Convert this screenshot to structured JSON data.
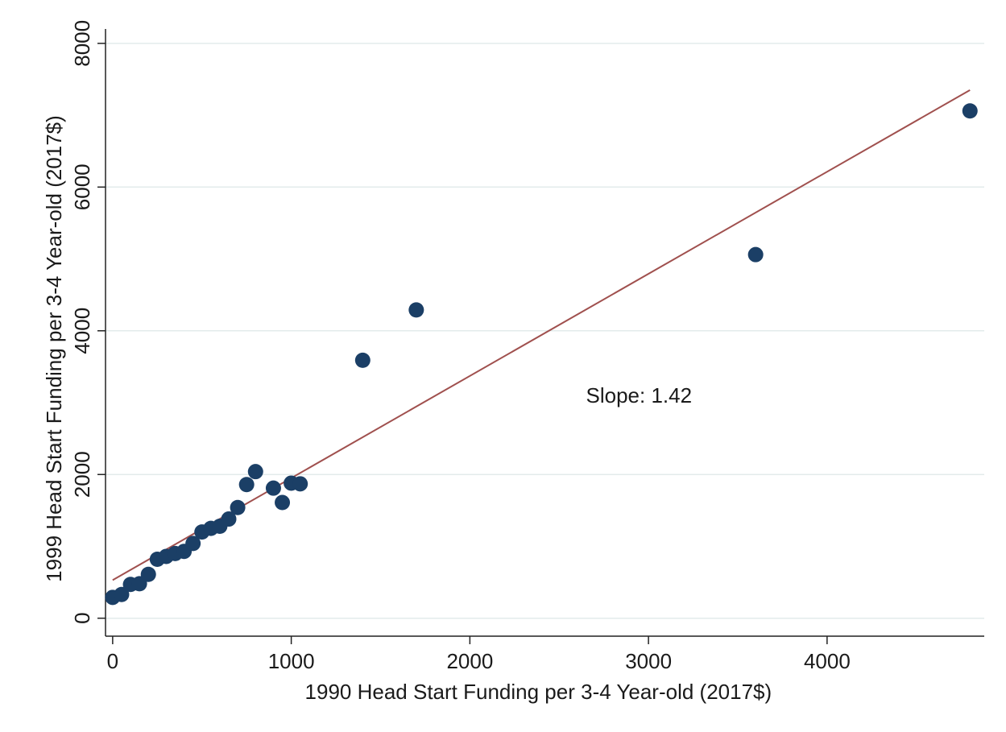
{
  "chart_data": {
    "type": "scatter",
    "title": "",
    "xlabel": "1990 Head Start Funding per 3-4 Year-old (2017$)",
    "ylabel": "1999 Head Start Funding per 3-4 Year-old (2017$)",
    "xlim": [
      -40,
      4880
    ],
    "ylim": [
      -250,
      8200
    ],
    "xticks": [
      0,
      1000,
      2000,
      3000,
      4000
    ],
    "yticks": [
      0,
      2000,
      4000,
      6000,
      8000
    ],
    "x_tick_labels": [
      "0",
      "1000",
      "2000",
      "3000",
      "4000"
    ],
    "y_tick_labels": [
      "0",
      "2000",
      "4000",
      "6000",
      "8000"
    ],
    "grid": "horizontal",
    "legend": "none",
    "marker_color": "#1b3f66",
    "line_color": "#a0504e",
    "grid_color": "#e3ebeb",
    "series": [
      {
        "points": [
          {
            "x": 0,
            "y": 290
          },
          {
            "x": 50,
            "y": 330
          },
          {
            "x": 100,
            "y": 470
          },
          {
            "x": 150,
            "y": 480
          },
          {
            "x": 200,
            "y": 610
          },
          {
            "x": 250,
            "y": 820
          },
          {
            "x": 300,
            "y": 860
          },
          {
            "x": 350,
            "y": 900
          },
          {
            "x": 400,
            "y": 930
          },
          {
            "x": 450,
            "y": 1040
          },
          {
            "x": 500,
            "y": 1200
          },
          {
            "x": 550,
            "y": 1250
          },
          {
            "x": 600,
            "y": 1280
          },
          {
            "x": 650,
            "y": 1380
          },
          {
            "x": 700,
            "y": 1540
          },
          {
            "x": 750,
            "y": 1860
          },
          {
            "x": 800,
            "y": 2040
          },
          {
            "x": 900,
            "y": 1810
          },
          {
            "x": 950,
            "y": 1610
          },
          {
            "x": 1000,
            "y": 1880
          },
          {
            "x": 1050,
            "y": 1870
          },
          {
            "x": 1400,
            "y": 3590
          },
          {
            "x": 1700,
            "y": 4290
          },
          {
            "x": 3600,
            "y": 5060
          },
          {
            "x": 4800,
            "y": 7060
          }
        ]
      }
    ],
    "fit_line": {
      "slope": 1.42,
      "x_range": [
        0,
        4800
      ],
      "y_range": [
        530,
        7350
      ]
    },
    "annotation": {
      "text": "Slope: 1.42",
      "x": 2650,
      "y": 3000
    }
  }
}
